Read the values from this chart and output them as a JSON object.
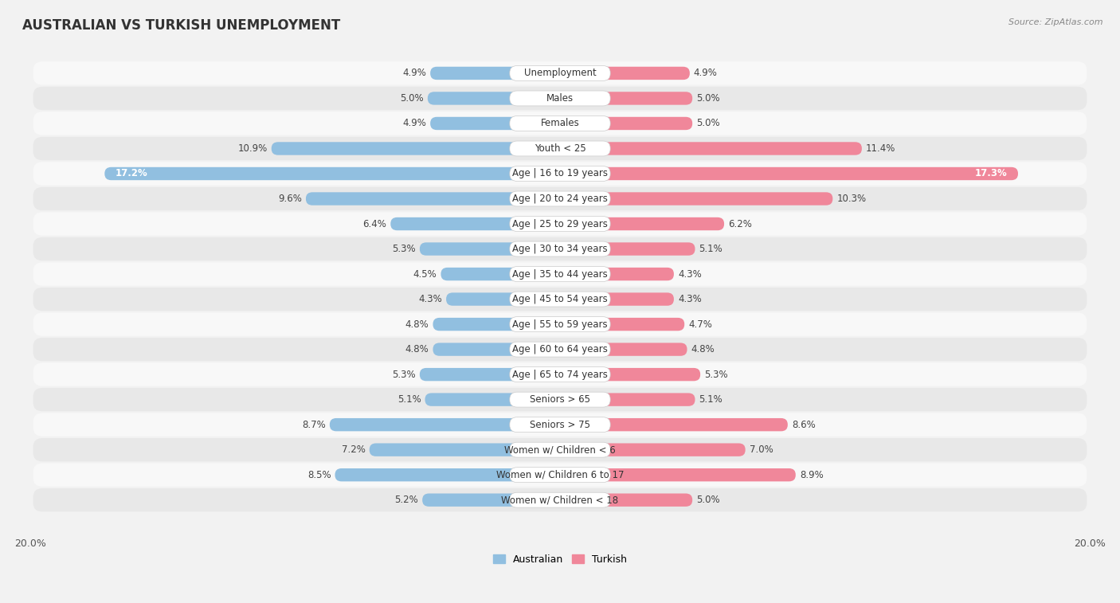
{
  "title": "AUSTRALIAN VS TURKISH UNEMPLOYMENT",
  "source": "Source: ZipAtlas.com",
  "categories": [
    "Unemployment",
    "Males",
    "Females",
    "Youth < 25",
    "Age | 16 to 19 years",
    "Age | 20 to 24 years",
    "Age | 25 to 29 years",
    "Age | 30 to 34 years",
    "Age | 35 to 44 years",
    "Age | 45 to 54 years",
    "Age | 55 to 59 years",
    "Age | 60 to 64 years",
    "Age | 65 to 74 years",
    "Seniors > 65",
    "Seniors > 75",
    "Women w/ Children < 6",
    "Women w/ Children 6 to 17",
    "Women w/ Children < 18"
  ],
  "australian": [
    4.9,
    5.0,
    4.9,
    10.9,
    17.2,
    9.6,
    6.4,
    5.3,
    4.5,
    4.3,
    4.8,
    4.8,
    5.3,
    5.1,
    8.7,
    7.2,
    8.5,
    5.2
  ],
  "turkish": [
    4.9,
    5.0,
    5.0,
    11.4,
    17.3,
    10.3,
    6.2,
    5.1,
    4.3,
    4.3,
    4.7,
    4.8,
    5.3,
    5.1,
    8.6,
    7.0,
    8.9,
    5.0
  ],
  "aus_color": "#91bfe0",
  "turk_color": "#f0879a",
  "bg_color": "#f2f2f2",
  "row_color_even": "#f8f8f8",
  "row_color_odd": "#e8e8e8",
  "axis_max": 20.0,
  "title_fontsize": 12,
  "label_fontsize": 8.5,
  "tick_fontsize": 9,
  "value_fontsize": 8.5
}
